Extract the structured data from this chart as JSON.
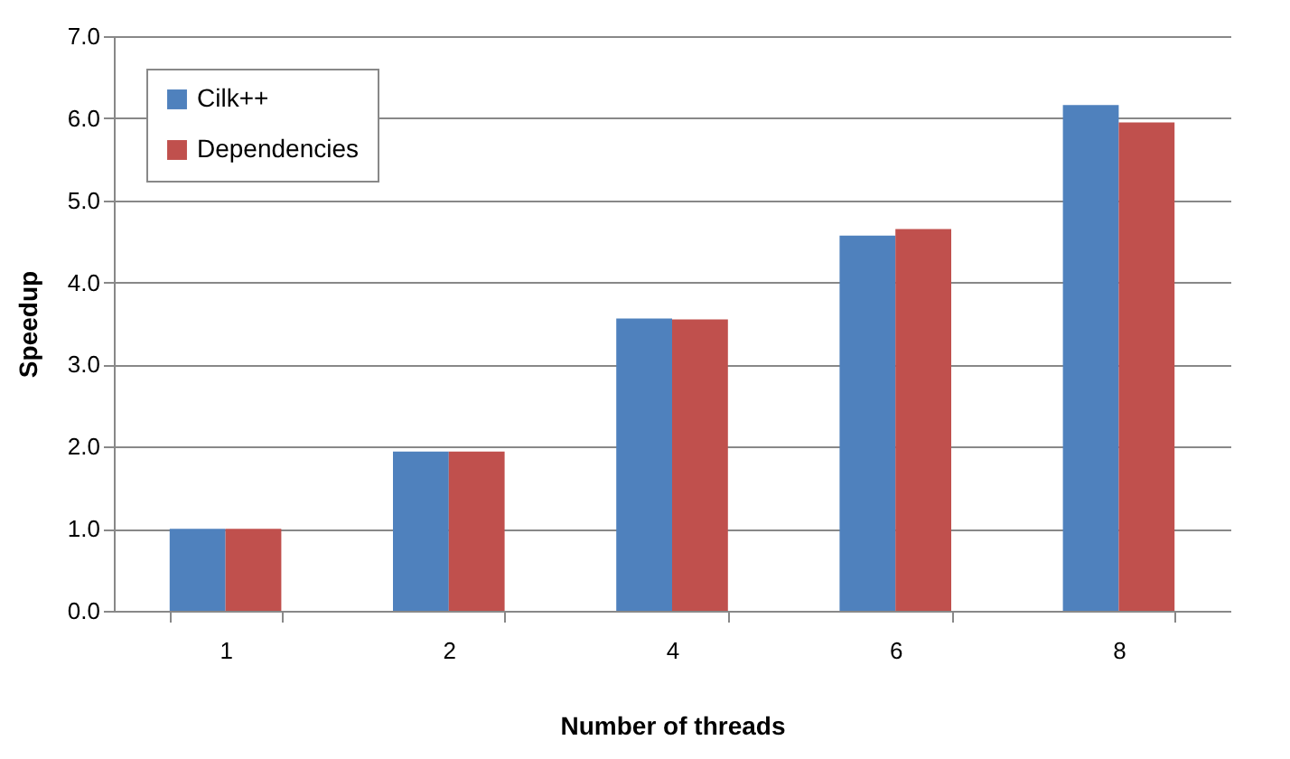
{
  "chart_data": {
    "type": "bar",
    "xlabel": "Number of threads",
    "ylabel": "Speedup",
    "categories": [
      "1",
      "2",
      "4",
      "6",
      "8"
    ],
    "series": [
      {
        "name": "Cilk++",
        "color": "#4f81bd",
        "values": [
          1.0,
          1.94,
          3.56,
          4.57,
          6.16
        ]
      },
      {
        "name": "Dependencies",
        "color": "#c0504d",
        "values": [
          1.0,
          1.94,
          3.55,
          4.65,
          5.95
        ]
      }
    ],
    "ylim": [
      0,
      7
    ],
    "yticks": [
      {
        "value": 0,
        "label": "0.0"
      },
      {
        "value": 1,
        "label": "1.0"
      },
      {
        "value": 2,
        "label": "2.0"
      },
      {
        "value": 3,
        "label": "3.0"
      },
      {
        "value": 4,
        "label": "4.0"
      },
      {
        "value": 5,
        "label": "5.0"
      },
      {
        "value": 6,
        "label": "6.0"
      },
      {
        "value": 7,
        "label": "7.0"
      }
    ],
    "grid": "y",
    "legend": "top left"
  }
}
